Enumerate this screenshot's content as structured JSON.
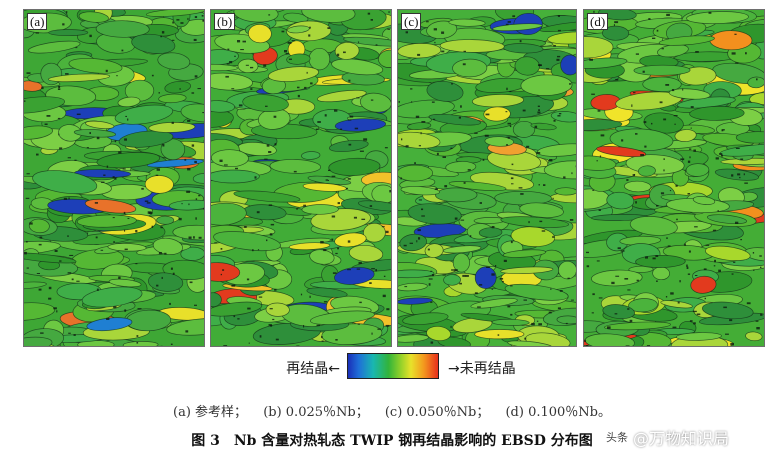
{
  "panels": [
    {
      "label": "(a)",
      "base": "#3ea735",
      "accent_set": [
        "#1d3fb8",
        "#e8722a",
        "#e8e02a",
        "#1f7fd2"
      ],
      "seed": 11
    },
    {
      "label": "(b)",
      "base": "#41ac37",
      "accent_set": [
        "#e23a1e",
        "#1d3fb8",
        "#f2c22a",
        "#e8e02a"
      ],
      "seed": 23
    },
    {
      "label": "(c)",
      "base": "#46b03a",
      "accent_set": [
        "#f0a030",
        "#e8e02a",
        "#a8d82c",
        "#1d3fb8"
      ],
      "seed": 37
    },
    {
      "label": "(d)",
      "base": "#44ad36",
      "accent_set": [
        "#f0e42a",
        "#f3901e",
        "#e23a1e",
        "#a8d82c"
      ],
      "seed": 51
    }
  ],
  "legend": {
    "left_text": "再结晶←",
    "right_text": "→未再结晶"
  },
  "subcaption": {
    "a": "(a) 参考样；",
    "b": "(b) 0.025％Nb；",
    "c": "(c) 0.050％Nb；",
    "d": "(d) 0.100％Nb。"
  },
  "figure": {
    "number": "图 3",
    "title": "Nb 含量对热轧态 TWIP 钢再结晶影响的 EBSD 分布图"
  },
  "watermark": {
    "logo": "头条",
    "text": "@万物知识局"
  }
}
